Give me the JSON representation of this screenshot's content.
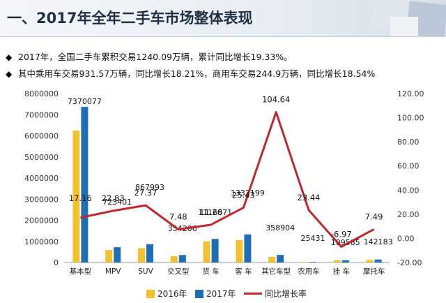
{
  "header": {
    "title": "一、2017年全年二手车市场整体表现"
  },
  "bullets": [
    "2017年，全国二手车累积交易1240.09万辆，累计同比增长19.33%。",
    "其中乘用车交易931.57万辆，同比增长18.21%，商用车交易244.9万辆，同比增长18.54%"
  ],
  "icons": {
    "bullet": "diamond-bullet-icon"
  },
  "colors": {
    "bar2016": "#f2c12e",
    "bar2017": "#1f6fb5",
    "line": "#c0272d",
    "header_text": "#1f2f44"
  },
  "chart_data": {
    "type": "bar",
    "categories": [
      "基本型",
      "MPV",
      "SUV",
      "交叉型",
      "货 车",
      "客 车",
      "其它车型",
      "农用车",
      "挂 车",
      "摩托车"
    ],
    "series": [
      {
        "name": "2016年",
        "type": "bar",
        "axis": "left",
        "values": [
          6250000,
          590000,
          680000,
          300000,
          1000000,
          1060000,
          270000,
          20000,
          105000,
          120000
        ]
      },
      {
        "name": "2017年",
        "type": "bar",
        "axis": "left",
        "values": [
          7370077,
          723401,
          867993,
          354206,
          1116871,
          1332199,
          358904,
          25431,
          109585,
          142183
        ],
        "labels": [
          "7370077",
          "723401",
          "867993",
          "354206",
          "1116871",
          "1332199",
          "358904",
          "25431",
          "109585",
          "142183"
        ]
      },
      {
        "name": "同比增长率",
        "type": "line",
        "axis": "right",
        "values": [
          17.16,
          22.83,
          27.37,
          7.48,
          11.26,
          25.43,
          104.64,
          23.44,
          -6.97,
          7.49
        ],
        "labels": [
          "17.16",
          "22.83",
          "27.37",
          "7.48",
          "11.26",
          "25.43",
          "104.64",
          "23.44",
          "-6.97",
          "7.49"
        ]
      }
    ],
    "y_left": {
      "min": 0,
      "max": 8000000,
      "step": 1000000,
      "ticks": [
        "0",
        "1000000",
        "2000000",
        "3000000",
        "4000000",
        "5000000",
        "6000000",
        "7000000",
        "8000000"
      ]
    },
    "y_right": {
      "min": -20,
      "max": 120,
      "step": 20,
      "ticks": [
        "-20.00",
        "0.00",
        "20.00",
        "40.00",
        "60.00",
        "80.00",
        "100.00",
        "120.00"
      ]
    },
    "grid": false,
    "legend": "bottom"
  }
}
